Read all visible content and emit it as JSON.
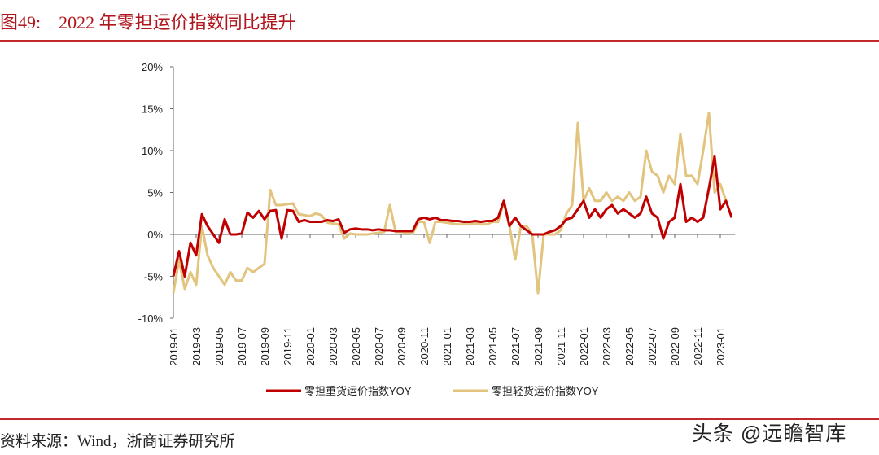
{
  "header": {
    "title": "图49:    2022 年零担运价指数同比提升"
  },
  "footer": {
    "source": "资料来源：Wind，浙商证券研究所",
    "watermark": "头条 @远瞻智库"
  },
  "colors": {
    "heavy": "#c00000",
    "light": "#e2c47f",
    "rule": "#c0282e"
  },
  "chart_data": {
    "type": "line",
    "title": "2022 年零担运价指数同比提升",
    "xlabel": "",
    "ylabel": "",
    "ylim": [
      -10,
      20
    ],
    "yticks": [
      "20%",
      "15%",
      "10%",
      "5%",
      "0%",
      "-5%",
      "-10%"
    ],
    "ytick_values": [
      20,
      15,
      10,
      5,
      0,
      -5,
      -10
    ],
    "xticks": [
      "2019-01",
      "2019-03",
      "2019-05",
      "2019-07",
      "2019-09",
      "2019-11",
      "2020-01",
      "2020-03",
      "2020-05",
      "2020-07",
      "2020-09",
      "2020-11",
      "2021-01",
      "2021-03",
      "2021-05",
      "2021-07",
      "2021-09",
      "2021-11",
      "2022-01",
      "2022-03",
      "2022-05",
      "2022-07",
      "2022-09",
      "2022-11",
      "2023-01"
    ],
    "legend_position": "bottom",
    "grid": false,
    "x_month_index": [
      0,
      0.5,
      1,
      1.5,
      2,
      2.5,
      3,
      3.5,
      4,
      4.5,
      5,
      5.5,
      6,
      6.5,
      7,
      7.5,
      8,
      8.5,
      9,
      9.5,
      10,
      10.5,
      11,
      11.5,
      12,
      12.5,
      13,
      13.5,
      14,
      14.5,
      15,
      15.5,
      16,
      16.5,
      17,
      17.5,
      18,
      18.5,
      19,
      19.5,
      20,
      20.5,
      21,
      21.5,
      22,
      22.5,
      23,
      23.5,
      24,
      24.5,
      25,
      25.5,
      26,
      26.5,
      27,
      27.5,
      28,
      28.5,
      29,
      29.5,
      30,
      30.5,
      31,
      31.5,
      32,
      32.5,
      33,
      33.5,
      34,
      34.5,
      35,
      35.5,
      36,
      36.5,
      37,
      37.5,
      38,
      38.5,
      39,
      39.5,
      40,
      40.5,
      41,
      41.5,
      42,
      42.5,
      43,
      43.5,
      44,
      44.5,
      45,
      45.5,
      46,
      46.5,
      47,
      47.5,
      48,
      48.5,
      49
    ],
    "series": [
      {
        "name": "零担重货运价指数YOY",
        "color": "#c00000",
        "values": [
          -5,
          -2,
          -5,
          -1,
          -2.5,
          2.4,
          1,
          0,
          -1,
          1.8,
          0,
          0,
          0.1,
          2.6,
          2,
          2.8,
          1.8,
          2.8,
          2.9,
          -0.5,
          2.9,
          2.8,
          1.5,
          1.7,
          1.5,
          1.5,
          1.5,
          1.7,
          1.6,
          1.8,
          0.2,
          0.6,
          0.7,
          0.6,
          0.6,
          0.5,
          0.6,
          0.5,
          0.5,
          0.4,
          0.4,
          0.4,
          0.4,
          1.8,
          2,
          1.8,
          2,
          1.7,
          1.7,
          1.6,
          1.6,
          1.5,
          1.5,
          1.6,
          1.5,
          1.6,
          1.6,
          2,
          4,
          1,
          2,
          1,
          0.5,
          0,
          0,
          0,
          0.3,
          0.5,
          1,
          1.8,
          2,
          3,
          4,
          2,
          3,
          2,
          3,
          3.5,
          2.5,
          3,
          2.5,
          2,
          2.5,
          4.5,
          2.5,
          2,
          -0.5,
          1.5,
          2,
          6,
          1.5,
          2,
          1.5,
          2,
          5.5,
          9.3,
          3,
          4,
          2
        ]
      },
      {
        "name": "零担轻货运价指数YOY",
        "color": "#e2c47f",
        "values": [
          -7,
          -3,
          -6.5,
          -4.5,
          -6,
          1,
          -2.5,
          -4,
          -5,
          -6,
          -4.5,
          -5.5,
          -5.5,
          -4,
          -4.5,
          -4,
          -3.5,
          5.3,
          3.5,
          3.5,
          3.6,
          3.7,
          2.4,
          2.3,
          2.2,
          2.5,
          2.3,
          1.4,
          1.3,
          1.2,
          -0.5,
          0.1,
          0,
          0,
          0,
          0.1,
          0.2,
          0.3,
          3.5,
          0.3,
          0.3,
          0.2,
          0.1,
          1.5,
          1.5,
          -1,
          1.5,
          1.5,
          1.4,
          1.3,
          1.2,
          1.2,
          1.2,
          1.3,
          1.2,
          1.2,
          1.5,
          1.5,
          3.8,
          1,
          -3,
          1,
          1,
          0,
          -7,
          0,
          0,
          0,
          0.5,
          2.5,
          3.5,
          13.3,
          4,
          5.5,
          4,
          4,
          5,
          4,
          4.5,
          4,
          5,
          4,
          4.5,
          10,
          7.5,
          7,
          5,
          7,
          6,
          12,
          7,
          7,
          6,
          10,
          14.5,
          5,
          6,
          4
        ]
      }
    ]
  },
  "legend": {
    "heavy_label": "零担重货运价指数YOY",
    "light_label": "零担轻货运价指数YOY"
  }
}
